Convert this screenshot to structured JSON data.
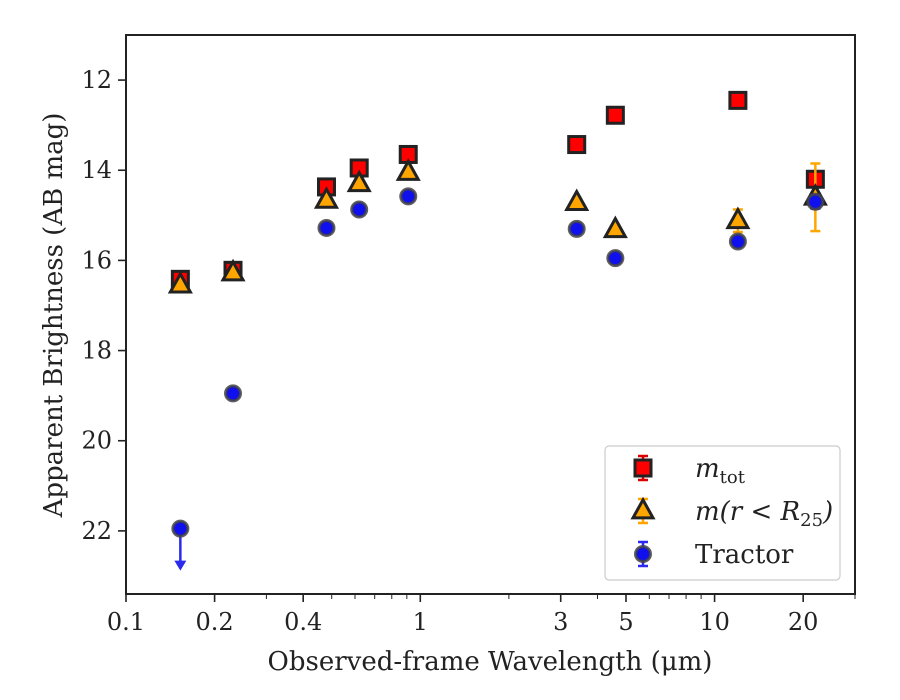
{
  "chart_data": {
    "type": "scatter",
    "xlabel": "Observed-frame Wavelength (μm)",
    "ylabel": "Apparent Brightness (AB mag)",
    "xscale": "log",
    "xlim": [
      0.1,
      30
    ],
    "ylim": [
      23.4,
      11
    ],
    "y_inverted": true,
    "x_ticks": [
      {
        "value": 0.1,
        "label": "0.1"
      },
      {
        "value": 0.2,
        "label": "0.2"
      },
      {
        "value": 0.4,
        "label": "0.4"
      },
      {
        "value": 1,
        "label": "1"
      },
      {
        "value": 3,
        "label": "3"
      },
      {
        "value": 5,
        "label": "5"
      },
      {
        "value": 10,
        "label": "10"
      },
      {
        "value": 20,
        "label": "20"
      }
    ],
    "y_ticks": [
      12,
      14,
      16,
      18,
      20,
      22
    ],
    "grid": false,
    "legend_position": "bottom-right",
    "series": [
      {
        "name_main": "m",
        "name_sub": "tot",
        "marker": "square",
        "color": "#ff0000",
        "error_color": "#dd0000",
        "points": [
          {
            "x": 0.153,
            "y": 16.42,
            "yerr": 0.08
          },
          {
            "x": 0.231,
            "y": 16.22,
            "yerr": 0.08
          },
          {
            "x": 0.48,
            "y": 14.37,
            "yerr": 0.06
          },
          {
            "x": 0.62,
            "y": 13.95,
            "yerr": 0.06
          },
          {
            "x": 0.91,
            "y": 13.65,
            "yerr": 0.06
          },
          {
            "x": 3.4,
            "y": 13.43,
            "yerr": 0.06
          },
          {
            "x": 4.6,
            "y": 12.78,
            "yerr": 0.06
          },
          {
            "x": 12.0,
            "y": 12.45,
            "yerr": 0.06
          },
          {
            "x": 22.0,
            "y": 14.2,
            "yerr": 0.06
          }
        ]
      },
      {
        "name_main": "m(r < R",
        "name_sub": "25",
        "name_tail": ")",
        "marker": "triangle",
        "color": "#ffa500",
        "error_color": "#ffa500",
        "points": [
          {
            "x": 0.153,
            "y": 16.55,
            "yerr": 0.08
          },
          {
            "x": 0.231,
            "y": 16.28,
            "yerr": 0.08
          },
          {
            "x": 0.48,
            "y": 14.67,
            "yerr": 0.06
          },
          {
            "x": 0.62,
            "y": 14.3,
            "yerr": 0.06
          },
          {
            "x": 0.91,
            "y": 14.05,
            "yerr": 0.06
          },
          {
            "x": 3.4,
            "y": 14.72,
            "yerr": 0.06
          },
          {
            "x": 4.6,
            "y": 15.32,
            "yerr": 0.06
          },
          {
            "x": 12.0,
            "y": 15.12,
            "yerr": 0.25
          },
          {
            "x": 22.0,
            "y": 14.6,
            "yerr": 0.75
          }
        ]
      },
      {
        "name_main": "Tractor",
        "marker": "circle",
        "color": "#1010ee",
        "error_color": "#2a2aee",
        "points": [
          {
            "x": 0.153,
            "y": 21.95,
            "yerr": 0.0,
            "upper_limit": true
          },
          {
            "x": 0.231,
            "y": 18.95,
            "yerr": 0.05
          },
          {
            "x": 0.48,
            "y": 15.28,
            "yerr": 0.04
          },
          {
            "x": 0.62,
            "y": 14.87,
            "yerr": 0.04
          },
          {
            "x": 0.91,
            "y": 14.58,
            "yerr": 0.04
          },
          {
            "x": 3.4,
            "y": 15.3,
            "yerr": 0.04
          },
          {
            "x": 4.6,
            "y": 15.95,
            "yerr": 0.04
          },
          {
            "x": 12.0,
            "y": 15.58,
            "yerr": 0.04
          },
          {
            "x": 22.0,
            "y": 14.7,
            "yerr": 0.15
          }
        ]
      }
    ]
  }
}
